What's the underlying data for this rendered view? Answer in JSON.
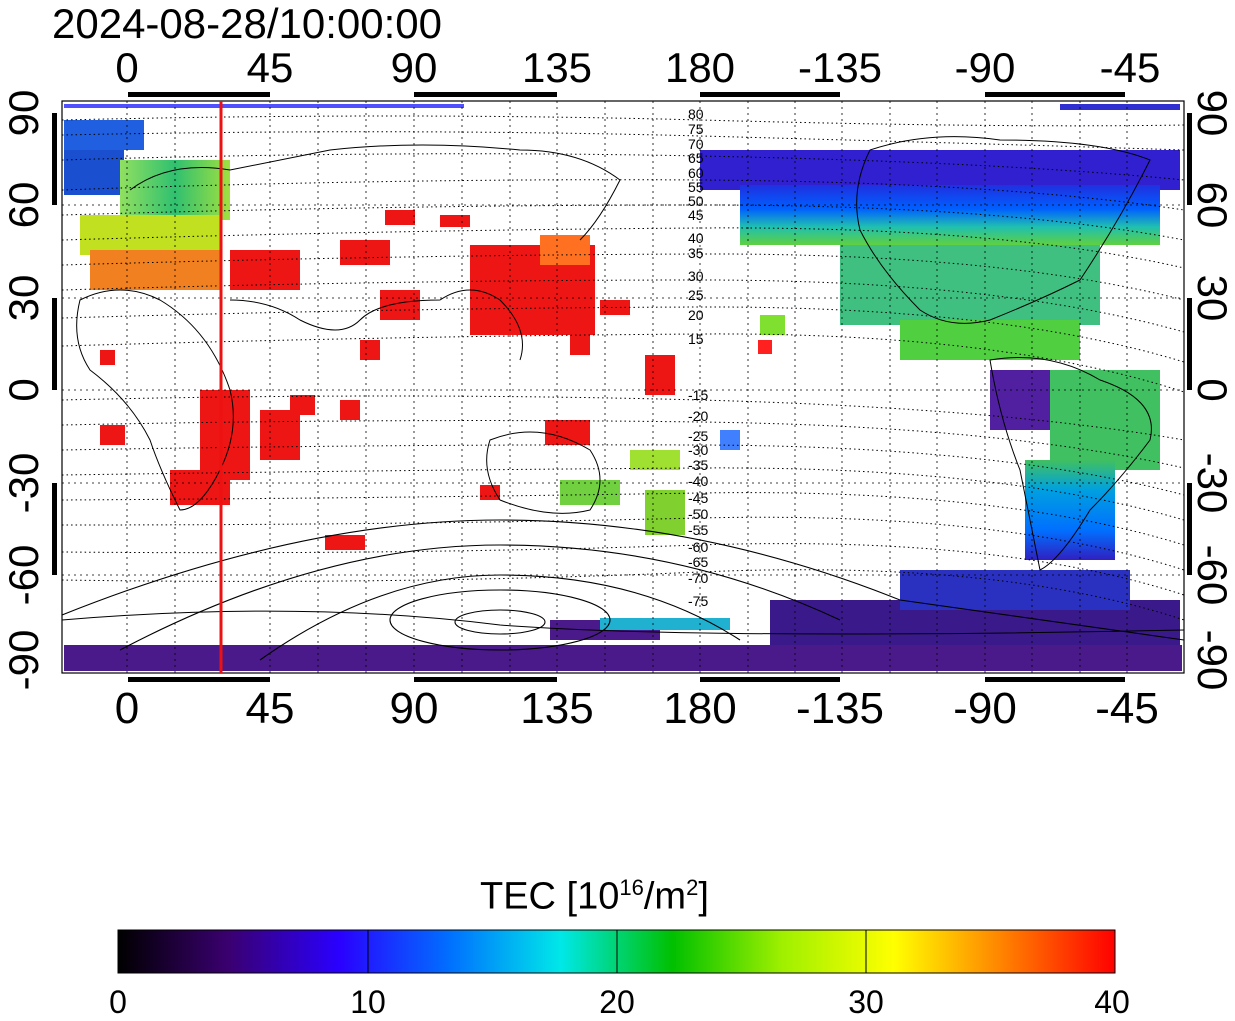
{
  "timestamp": "2024-08-28/10:00:00",
  "axes": {
    "top_lon_ticks": [
      "0",
      "45",
      "90",
      "135",
      "180",
      "-135",
      "-90",
      "-45"
    ],
    "bottom_lon_ticks": [
      "0",
      "45",
      "90",
      "135",
      "180",
      "-135",
      "-90",
      "-45"
    ],
    "left_lat_ticks": [
      "90",
      "60",
      "30",
      "0",
      "-30",
      "-60",
      "-90"
    ],
    "right_lat_ticks": [
      "90",
      "60",
      "30",
      "0",
      "-30",
      "-60",
      "-90"
    ]
  },
  "contour_labels": [
    "80",
    "75",
    "70",
    "65",
    "60",
    "55",
    "50",
    "45",
    "40",
    "35",
    "30",
    "25",
    "20",
    "15",
    "-15",
    "-20",
    "-25",
    "-30",
    "-35",
    "-40",
    "-45",
    "-50",
    "-55",
    "-60",
    "-65",
    "-70",
    "-75"
  ],
  "colorbar": {
    "title_prefix": "TEC  [10",
    "title_exp": "16",
    "title_unit": "/m",
    "title_unit_exp": "2",
    "title_close": "]",
    "min": 0,
    "max": 40,
    "tick_labels": [
      "0",
      "10",
      "20",
      "30",
      "40"
    ],
    "stops": [
      "#000000",
      "#3a0070",
      "#2a00ff",
      "#0070ff",
      "#00e8e8",
      "#00c000",
      "#a0f000",
      "#ffff00",
      "#ff8000",
      "#ff0000"
    ]
  },
  "marker_line": {
    "color": "#ee1111",
    "longitude": 30
  },
  "map_colors": {
    "frame": "#000000",
    "grid": "#000000",
    "coast": "#000000"
  }
}
